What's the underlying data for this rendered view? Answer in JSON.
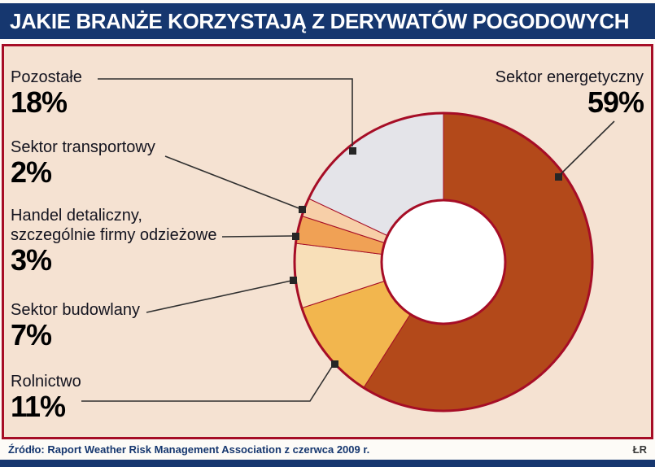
{
  "header": {
    "title": "JAKIE BRANŻE KORZYSTAJĄ Z DERYWATÓW POGODOWYCH"
  },
  "footer": {
    "source": "Źródło: Raport Weather Risk Management Association z czerwca 2009 r.",
    "credit": "ŁR"
  },
  "colors": {
    "header_bg": "#16376f",
    "panel_bg": "#f5e2d2",
    "panel_border": "#a60d26",
    "donut_stroke": "#a60d26",
    "hole_fill": "#ffffff"
  },
  "chart_data": {
    "type": "pie",
    "subtype": "donut",
    "title": "JAKIE BRANŻE KORZYSTAJĄ Z DERYWATÓW POGODOWYCH",
    "unit": "%",
    "direction": "clockwise",
    "start_angle_deg": 0,
    "legend_position": "callouts",
    "slices": [
      {
        "id": "energetyczny",
        "label": "Sektor energetyczny",
        "value": 59,
        "color": "#b3491a"
      },
      {
        "id": "rolnictwo",
        "label": "Rolnictwo",
        "value": 11,
        "color": "#f2b64e"
      },
      {
        "id": "budowlany",
        "label": "Sektor budowlany",
        "value": 7,
        "color": "#f8dfb8"
      },
      {
        "id": "handel",
        "label": "Handel detaliczny, szczególnie firmy odzieżowe",
        "value": 3,
        "color": "#f0a155"
      },
      {
        "id": "transportowy",
        "label": "Sektor transportowy",
        "value": 2,
        "color": "#f7cfa8"
      },
      {
        "id": "pozostale",
        "label": "Pozostałe",
        "value": 18,
        "color": "#e4e4e9"
      }
    ]
  },
  "callouts": [
    {
      "id": "pozostale",
      "label": "Pozostałe",
      "pct": "18%"
    },
    {
      "id": "transportowy",
      "label": "Sektor transportowy",
      "pct": "2%"
    },
    {
      "id": "handel",
      "label": "Handel detaliczny,\nszczególnie firmy odzieżowe",
      "pct": "3%"
    },
    {
      "id": "budowlany",
      "label": "Sektor budowlany",
      "pct": "7%"
    },
    {
      "id": "rolnictwo",
      "label": "Rolnictwo",
      "pct": "11%"
    },
    {
      "id": "energetyczny",
      "label": "Sektor energetyczny",
      "pct": "59%"
    }
  ]
}
